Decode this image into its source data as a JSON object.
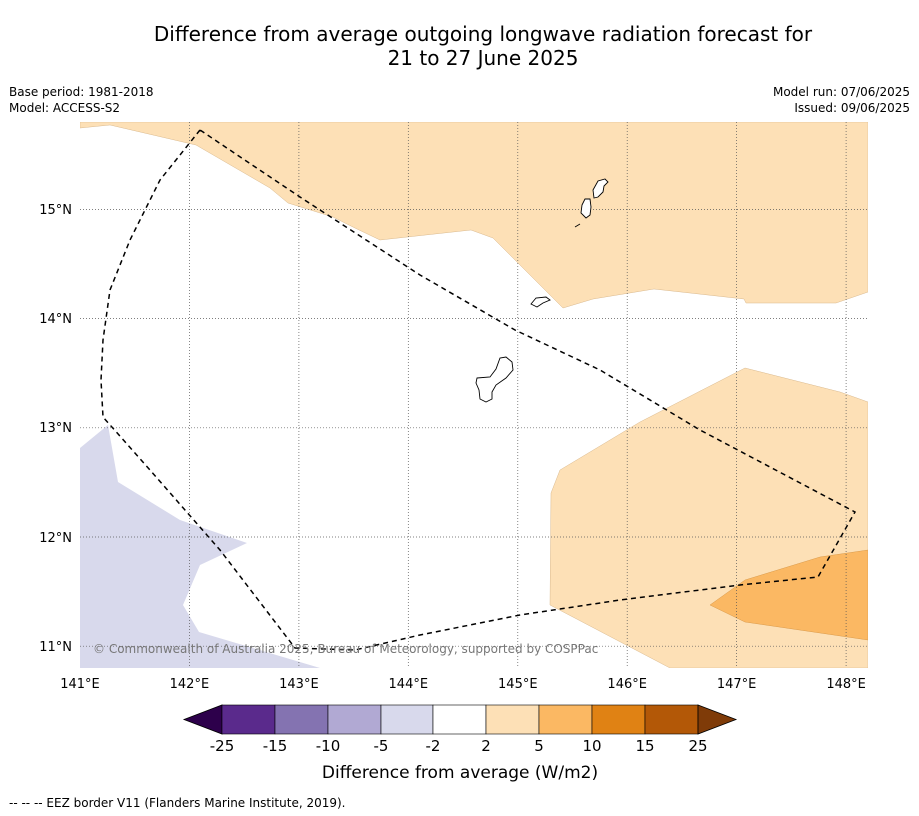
{
  "title": {
    "line1": "Difference from average outgoing longwave radiation forecast for",
    "line2": "21 to 27 June 2025"
  },
  "info": {
    "base_period": "Base period: 1981-2018",
    "model": "Model: ACCESS-S2",
    "model_run": "Model run: 07/06/2025",
    "issued": "Issued: 09/06/2025"
  },
  "map": {
    "lon_range": [
      141.0,
      148.2
    ],
    "lat_range": [
      10.8,
      15.8
    ],
    "lon_ticks": [
      {
        "value": 141,
        "label": "141°E"
      },
      {
        "value": 142,
        "label": "142°E"
      },
      {
        "value": 143,
        "label": "143°E"
      },
      {
        "value": 144,
        "label": "144°E"
      },
      {
        "value": 145,
        "label": "145°E"
      },
      {
        "value": 146,
        "label": "146°E"
      },
      {
        "value": 147,
        "label": "147°E"
      },
      {
        "value": 148,
        "label": "148°E"
      }
    ],
    "lat_ticks": [
      {
        "value": 11,
        "label": "11°N"
      },
      {
        "value": 12,
        "label": "12°N"
      },
      {
        "value": 13,
        "label": "13°N"
      },
      {
        "value": 14,
        "label": "14°N"
      },
      {
        "value": 15,
        "label": "15°N"
      }
    ],
    "copyright": "© Commonwealth of Australia 2025, Bureau of Meteorology, supported by COSPPac"
  },
  "colorbar": {
    "label": "Difference from average (W/m2)",
    "tick_labels": [
      "-25",
      "-15",
      "-10",
      "-5",
      "-2",
      "2",
      "5",
      "10",
      "15",
      "25"
    ],
    "colors": {
      "below_min": "#2d004b",
      "bins": [
        "#5a2a8c",
        "#8473b1",
        "#b1a9d3",
        "#d8d9ec",
        "#ffffff",
        "#fde0b6",
        "#fbb863",
        "#e08214",
        "#b35807"
      ],
      "above_max": "#7f3b08"
    }
  },
  "footnote": "--  --  -- EEZ border V11 (Flanders Marine Institute, 2019)."
}
